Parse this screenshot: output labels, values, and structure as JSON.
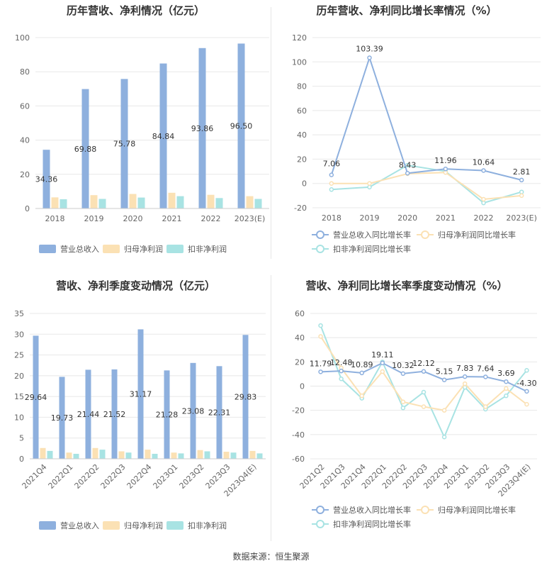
{
  "source": "数据来源：恒生聚源",
  "chart_data": [
    {
      "id": "annual-revenue-profit",
      "type": "bar",
      "title": "历年营收、净利情况（亿元）",
      "categories": [
        "2018",
        "2019",
        "2020",
        "2021",
        "2022",
        "2023(E)"
      ],
      "ylim": [
        0,
        100
      ],
      "yticks": [
        0,
        20,
        40,
        60,
        80,
        100
      ],
      "grid": true,
      "legend_position": "bottom",
      "series": [
        {
          "name": "营业总收入",
          "color": "#8eb0de",
          "values": [
            34.36,
            69.88,
            75.78,
            84.84,
            93.86,
            96.5
          ],
          "labels": [
            "34.36",
            "69.88",
            "75.78",
            "84.84",
            "93.86",
            "96.50"
          ]
        },
        {
          "name": "归母净利润",
          "color": "#fbe1b4",
          "values": [
            6.5,
            7.8,
            8.5,
            9.2,
            8.0,
            7.2
          ]
        },
        {
          "name": "扣非净利润",
          "color": "#a8e3e3",
          "values": [
            5.4,
            5.6,
            6.4,
            7.2,
            6.1,
            5.6
          ]
        }
      ]
    },
    {
      "id": "annual-growth",
      "type": "line",
      "title": "历年营收、净利同比增长率情况（%）",
      "categories": [
        "2018",
        "2019",
        "2020",
        "2021",
        "2022",
        "2023(E)"
      ],
      "ylim": [
        -20,
        120
      ],
      "yticks": [
        -20,
        0,
        20,
        40,
        60,
        80,
        100,
        120
      ],
      "grid": true,
      "legend_position": "bottom",
      "series": [
        {
          "name": "营业总收入同比增长率",
          "color": "#8eb0de",
          "values": [
            7.06,
            103.39,
            8.43,
            11.96,
            10.64,
            2.81
          ],
          "labels": [
            "7.06",
            "103.39",
            "8.43",
            "11.96",
            "10.64",
            "2.81"
          ]
        },
        {
          "name": "归母净利润同比增长率",
          "color": "#fbe1b4",
          "values": [
            0,
            0,
            8,
            9,
            -13,
            -10
          ]
        },
        {
          "name": "扣非净利润同比增长率",
          "color": "#a8e3e3",
          "values": [
            -5,
            -3,
            15,
            10,
            -16,
            -7
          ]
        }
      ]
    },
    {
      "id": "quarterly-revenue-profit",
      "type": "bar",
      "title": "营收、净利季度变动情况（亿元）",
      "categories": [
        "2021Q4",
        "2022Q1",
        "2022Q2",
        "2022Q3",
        "2022Q4",
        "2023Q1",
        "2023Q2",
        "2023Q3",
        "2023Q4(E)"
      ],
      "ylim": [
        0,
        35
      ],
      "yticks": [
        0,
        5,
        10,
        15,
        20,
        25,
        30,
        35
      ],
      "grid": true,
      "legend_position": "bottom",
      "series": [
        {
          "name": "营业总收入",
          "color": "#8eb0de",
          "values": [
            29.64,
            19.73,
            21.44,
            21.52,
            31.17,
            21.28,
            23.08,
            22.31,
            29.83
          ],
          "labels": [
            "29.64",
            "19.73",
            "21.44",
            "21.52",
            "31.17",
            "21.28",
            "23.08",
            "22.31",
            "29.83"
          ]
        },
        {
          "name": "归母净利润",
          "color": "#fbe1b4",
          "values": [
            2.6,
            1.5,
            2.6,
            1.8,
            2.2,
            1.5,
            2.1,
            1.7,
            1.9
          ]
        },
        {
          "name": "扣非净利润",
          "color": "#a8e3e3",
          "values": [
            1.9,
            1.2,
            2.2,
            1.5,
            1.2,
            1.3,
            1.8,
            1.5,
            1.3
          ]
        }
      ]
    },
    {
      "id": "quarterly-growth",
      "type": "line",
      "title": "营收、净利同比增长率季度变动情况（%）",
      "categories": [
        "2021Q2",
        "2021Q3",
        "2021Q4",
        "2022Q1",
        "2022Q2",
        "2022Q3",
        "2022Q4",
        "2023Q1",
        "2023Q2",
        "2023Q3",
        "2023Q4(E)"
      ],
      "ylim": [
        -60,
        60
      ],
      "yticks": [
        -60,
        -40,
        -20,
        0,
        20,
        40,
        60
      ],
      "grid": true,
      "legend_position": "bottom",
      "series": [
        {
          "name": "营业总收入同比增长率",
          "color": "#8eb0de",
          "values": [
            11.79,
            12.48,
            10.89,
            19.11,
            10.32,
            12.12,
            5.15,
            7.83,
            7.64,
            3.69,
            -4.3
          ],
          "labels": [
            "11.79",
            "12.48",
            "10.89",
            "19.11",
            "10.32",
            "12.12",
            "5.15",
            "7.83",
            "7.64",
            "3.69",
            "-4.30"
          ]
        },
        {
          "name": "归母净利润同比增长率",
          "color": "#fbe1b4",
          "values": [
            41,
            15,
            -8,
            12,
            -13,
            -17,
            -20,
            2,
            -17,
            -2,
            -15
          ]
        },
        {
          "name": "扣非净利润同比增长率",
          "color": "#a8e3e3",
          "values": [
            50,
            6,
            -10,
            20,
            -18,
            -5,
            -42,
            -1,
            -19,
            -8,
            13
          ]
        }
      ]
    }
  ]
}
